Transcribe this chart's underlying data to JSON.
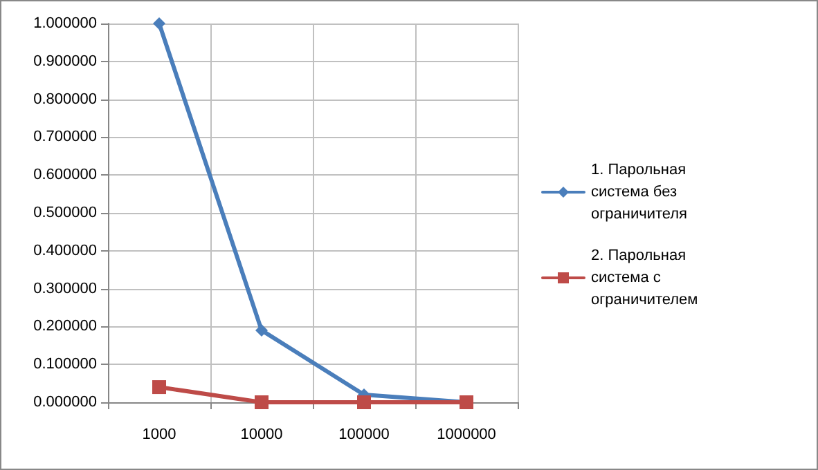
{
  "chart_data": {
    "type": "line",
    "categories": [
      "1000",
      "10000",
      "100000",
      "1000000"
    ],
    "series": [
      {
        "name": "1. Парольная  система без ограничителя",
        "color": "#4a7ebb",
        "marker": "diamond",
        "values": [
          1.0,
          0.19,
          0.02,
          0.0
        ]
      },
      {
        "name": "2. Парольная  система с ограничителем",
        "color": "#be4b48",
        "marker": "square",
        "values": [
          0.04,
          0.0,
          0.0,
          0.0
        ]
      }
    ],
    "ylim": [
      0,
      1
    ],
    "yticks": [
      {
        "value": 0,
        "label": "0.000000"
      },
      {
        "value": 0.1,
        "label": "0.100000"
      },
      {
        "value": 0.2,
        "label": "0.200000"
      },
      {
        "value": 0.3,
        "label": "0.300000"
      },
      {
        "value": 0.4,
        "label": "0.400000"
      },
      {
        "value": 0.5,
        "label": "0.500000"
      },
      {
        "value": 0.6,
        "label": "0.600000"
      },
      {
        "value": 0.7,
        "label": "0.700000"
      },
      {
        "value": 0.8,
        "label": "0.800000"
      },
      {
        "value": 0.9,
        "label": "0.900000"
      },
      {
        "value": 1,
        "label": "1.000000"
      }
    ],
    "grid": true,
    "legend": "right"
  }
}
